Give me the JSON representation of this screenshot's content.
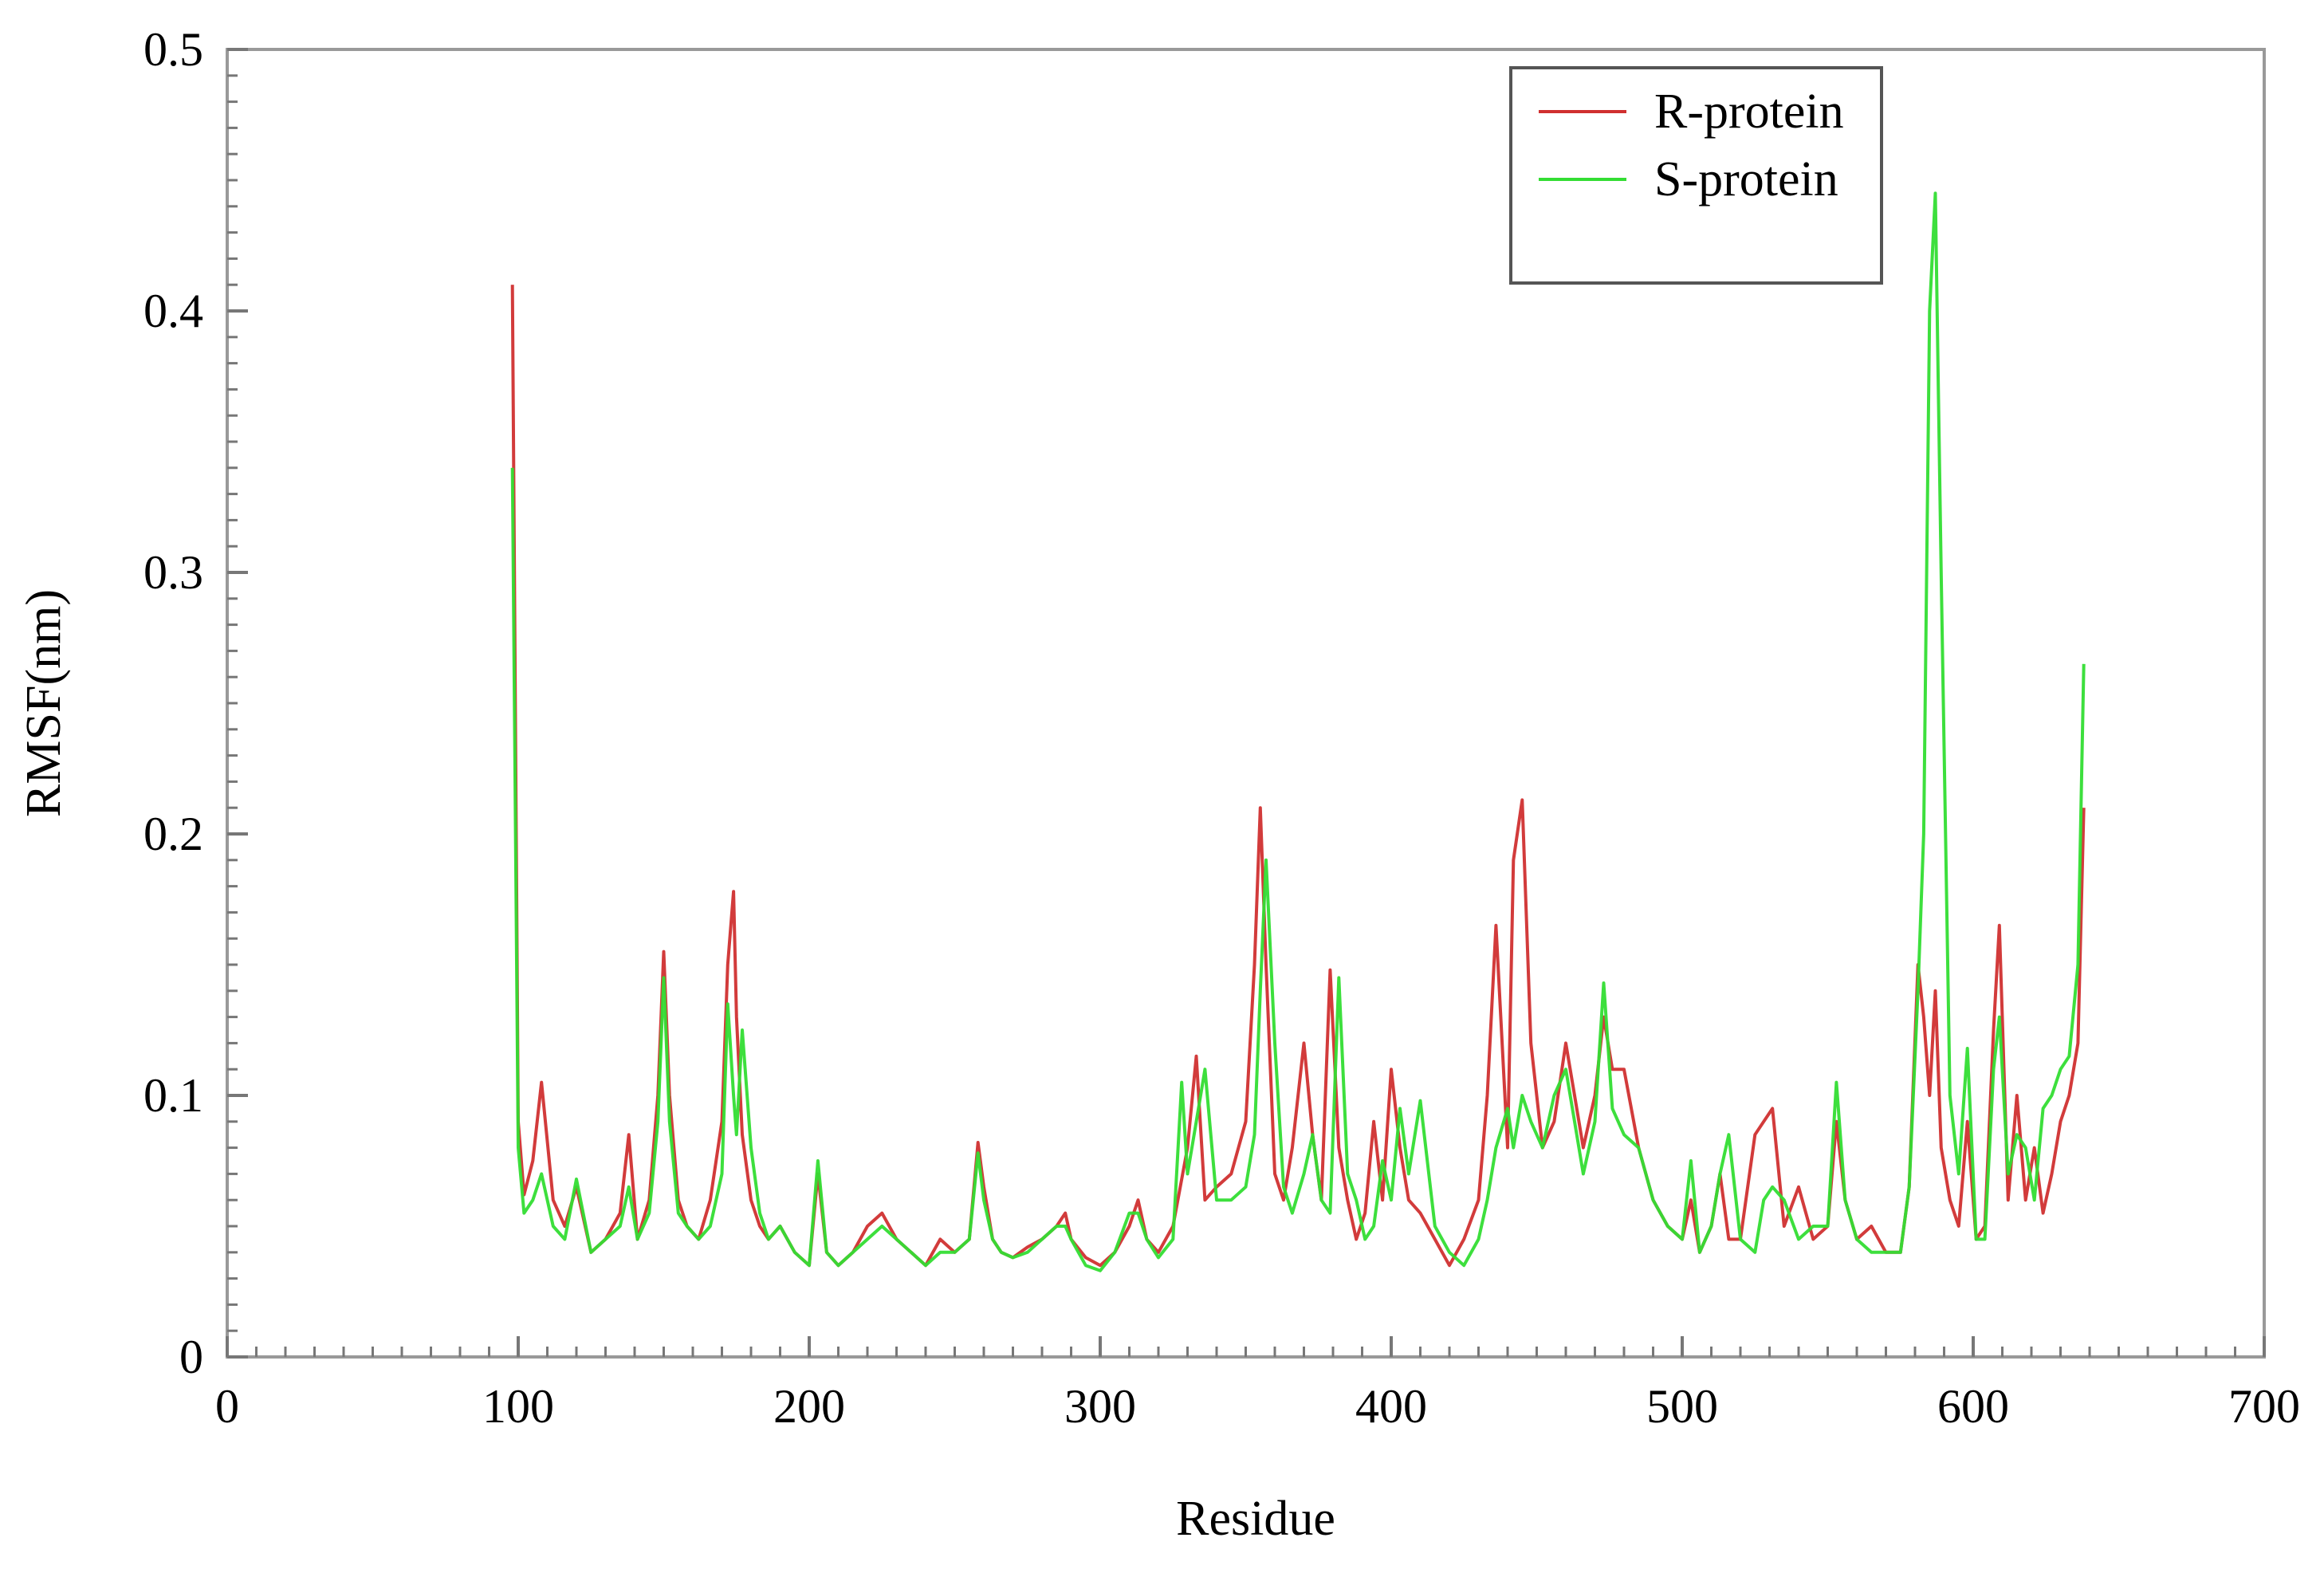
{
  "chart_data": {
    "type": "line",
    "title": "",
    "xlabel": "Residue",
    "ylabel": "RMSF(nm)",
    "xlim": [
      0,
      700
    ],
    "ylim": [
      0,
      0.5
    ],
    "x_ticks": [
      0,
      100,
      200,
      300,
      400,
      500,
      600,
      700
    ],
    "y_ticks": [
      0,
      0.1,
      0.2,
      0.3,
      0.4,
      0.5
    ],
    "x_tick_labels": [
      "0",
      "100",
      "200",
      "300",
      "400",
      "500",
      "600",
      "700"
    ],
    "y_tick_labels": [
      "0",
      "0.1",
      "0.2",
      "0.3",
      "0.4",
      "0.5"
    ],
    "grid": false,
    "legend_position": "top-right",
    "series": [
      {
        "name": "R-protein",
        "color": "#d03030",
        "x": [
          98,
          100,
          102,
          105,
          108,
          112,
          116,
          120,
          125,
          130,
          135,
          138,
          141,
          145,
          148,
          150,
          152,
          155,
          158,
          162,
          166,
          170,
          172,
          174,
          175,
          177,
          180,
          183,
          186,
          190,
          195,
          200,
          203,
          206,
          210,
          215,
          220,
          225,
          230,
          235,
          240,
          245,
          250,
          255,
          258,
          260,
          263,
          266,
          270,
          275,
          280,
          285,
          288,
          290,
          295,
          300,
          305,
          310,
          313,
          316,
          320,
          325,
          330,
          333,
          336,
          340,
          345,
          350,
          353,
          355,
          357,
          360,
          363,
          366,
          370,
          373,
          376,
          379,
          382,
          385,
          388,
          391,
          394,
          397,
          400,
          403,
          406,
          410,
          415,
          420,
          425,
          430,
          433,
          436,
          440,
          442,
          445,
          448,
          452,
          456,
          460,
          463,
          466,
          470,
          473,
          476,
          480,
          485,
          490,
          495,
          500,
          503,
          506,
          510,
          513,
          516,
          520,
          525,
          528,
          531,
          535,
          540,
          545,
          550,
          553,
          556,
          560,
          565,
          570,
          575,
          578,
          581,
          583,
          585,
          587,
          589,
          592,
          595,
          598,
          601,
          604,
          607,
          609,
          612,
          615,
          618,
          621,
          624,
          627,
          630,
          633,
          636,
          638
        ],
        "values": [
          0.41,
          0.09,
          0.062,
          0.075,
          0.105,
          0.06,
          0.05,
          0.065,
          0.04,
          0.045,
          0.055,
          0.085,
          0.045,
          0.06,
          0.1,
          0.155,
          0.1,
          0.06,
          0.05,
          0.045,
          0.06,
          0.09,
          0.15,
          0.178,
          0.13,
          0.085,
          0.06,
          0.05,
          0.045,
          0.05,
          0.04,
          0.035,
          0.07,
          0.04,
          0.035,
          0.04,
          0.05,
          0.055,
          0.045,
          0.04,
          0.035,
          0.045,
          0.04,
          0.045,
          0.082,
          0.065,
          0.045,
          0.04,
          0.038,
          0.042,
          0.045,
          0.05,
          0.055,
          0.045,
          0.038,
          0.035,
          0.04,
          0.05,
          0.06,
          0.045,
          0.04,
          0.05,
          0.08,
          0.115,
          0.06,
          0.065,
          0.07,
          0.09,
          0.15,
          0.21,
          0.15,
          0.07,
          0.06,
          0.08,
          0.12,
          0.085,
          0.06,
          0.148,
          0.08,
          0.06,
          0.045,
          0.055,
          0.09,
          0.06,
          0.11,
          0.08,
          0.06,
          0.055,
          0.045,
          0.035,
          0.045,
          0.06,
          0.1,
          0.165,
          0.08,
          0.19,
          0.213,
          0.12,
          0.08,
          0.09,
          0.12,
          0.1,
          0.08,
          0.1,
          0.13,
          0.11,
          0.11,
          0.08,
          0.06,
          0.05,
          0.045,
          0.06,
          0.04,
          0.05,
          0.07,
          0.045,
          0.045,
          0.085,
          0.09,
          0.095,
          0.05,
          0.065,
          0.045,
          0.05,
          0.09,
          0.06,
          0.045,
          0.05,
          0.04,
          0.04,
          0.065,
          0.15,
          0.13,
          0.1,
          0.14,
          0.08,
          0.06,
          0.05,
          0.09,
          0.045,
          0.05,
          0.125,
          0.165,
          0.06,
          0.1,
          0.06,
          0.08,
          0.055,
          0.07,
          0.09,
          0.1,
          0.12,
          0.21
        ]
      },
      {
        "name": "S-protein",
        "color": "#33dd33",
        "x": [
          98,
          100,
          102,
          105,
          108,
          112,
          116,
          120,
          125,
          130,
          135,
          138,
          141,
          145,
          148,
          150,
          152,
          155,
          158,
          162,
          166,
          170,
          172,
          174,
          175,
          177,
          180,
          183,
          186,
          190,
          195,
          200,
          203,
          206,
          210,
          215,
          220,
          225,
          230,
          235,
          240,
          245,
          250,
          255,
          258,
          260,
          263,
          266,
          270,
          275,
          280,
          285,
          288,
          290,
          295,
          300,
          305,
          310,
          313,
          316,
          320,
          325,
          328,
          330,
          333,
          336,
          340,
          345,
          350,
          353,
          355,
          357,
          360,
          363,
          366,
          370,
          373,
          376,
          379,
          382,
          385,
          388,
          391,
          394,
          397,
          400,
          403,
          406,
          410,
          415,
          420,
          425,
          430,
          433,
          436,
          440,
          442,
          445,
          448,
          452,
          456,
          460,
          463,
          466,
          470,
          473,
          476,
          480,
          485,
          490,
          495,
          500,
          503,
          506,
          510,
          513,
          516,
          520,
          525,
          528,
          531,
          535,
          540,
          545,
          550,
          553,
          556,
          560,
          565,
          570,
          575,
          578,
          581,
          583,
          585,
          587,
          589,
          592,
          595,
          598,
          601,
          604,
          607,
          609,
          612,
          615,
          618,
          621,
          624,
          627,
          630,
          633,
          636,
          638
        ],
        "values": [
          0.34,
          0.08,
          0.055,
          0.06,
          0.07,
          0.05,
          0.045,
          0.068,
          0.04,
          0.045,
          0.05,
          0.065,
          0.045,
          0.055,
          0.09,
          0.145,
          0.09,
          0.055,
          0.05,
          0.045,
          0.05,
          0.07,
          0.135,
          0.1,
          0.085,
          0.125,
          0.08,
          0.055,
          0.045,
          0.05,
          0.04,
          0.035,
          0.075,
          0.04,
          0.035,
          0.04,
          0.045,
          0.05,
          0.045,
          0.04,
          0.035,
          0.04,
          0.04,
          0.045,
          0.078,
          0.06,
          0.045,
          0.04,
          0.038,
          0.04,
          0.045,
          0.05,
          0.05,
          0.045,
          0.035,
          0.033,
          0.04,
          0.055,
          0.055,
          0.045,
          0.038,
          0.045,
          0.105,
          0.07,
          0.09,
          0.11,
          0.06,
          0.06,
          0.065,
          0.085,
          0.14,
          0.19,
          0.12,
          0.065,
          0.055,
          0.07,
          0.085,
          0.06,
          0.055,
          0.145,
          0.07,
          0.06,
          0.045,
          0.05,
          0.075,
          0.06,
          0.095,
          0.07,
          0.098,
          0.05,
          0.04,
          0.035,
          0.045,
          0.06,
          0.08,
          0.095,
          0.08,
          0.1,
          0.09,
          0.08,
          0.1,
          0.11,
          0.09,
          0.07,
          0.09,
          0.143,
          0.095,
          0.085,
          0.08,
          0.06,
          0.05,
          0.045,
          0.075,
          0.04,
          0.05,
          0.07,
          0.085,
          0.045,
          0.04,
          0.06,
          0.065,
          0.06,
          0.045,
          0.05,
          0.05,
          0.105,
          0.06,
          0.045,
          0.04,
          0.04,
          0.04,
          0.065,
          0.14,
          0.2,
          0.4,
          0.445,
          0.3,
          0.1,
          0.07,
          0.118,
          0.045,
          0.045,
          0.11,
          0.13,
          0.07,
          0.085,
          0.08,
          0.06,
          0.095,
          0.1,
          0.11,
          0.115,
          0.15,
          0.265
        ]
      }
    ]
  }
}
